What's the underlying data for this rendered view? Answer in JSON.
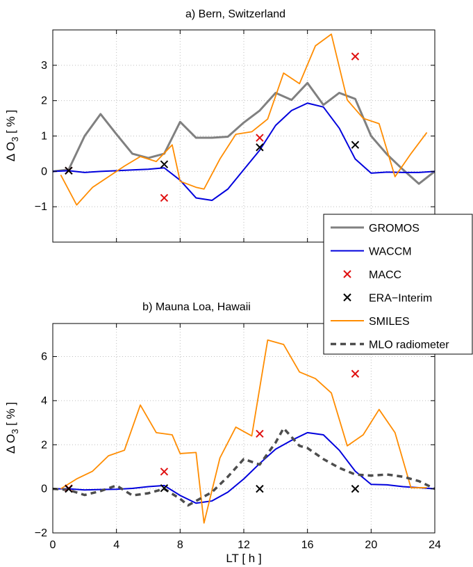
{
  "chart_data": [
    {
      "type": "line",
      "title": "a)  Bern, Switzerland",
      "xlabel": "",
      "ylabel": "Δ O3 [ % ]",
      "xlim": [
        0,
        24
      ],
      "ylim": [
        -2,
        4
      ],
      "xticks": [
        "0",
        "4",
        "8",
        "12",
        "16",
        "20",
        "24"
      ],
      "yticks": [
        "−1",
        "0",
        "1",
        "2",
        "3"
      ],
      "yticks_values": [
        -1,
        0,
        1,
        2,
        3
      ],
      "grid": true,
      "series": [
        {
          "name": "GROMOS",
          "color": "#808080",
          "width": 3,
          "dash": "",
          "x": [
            0,
            1,
            2,
            3,
            4,
            5,
            6,
            7,
            8,
            9,
            10,
            11,
            12,
            13,
            14,
            15,
            16,
            17,
            18,
            19,
            20,
            21,
            22,
            23,
            24
          ],
          "y": [
            0.0,
            0.05,
            1.0,
            1.62,
            1.05,
            0.5,
            0.38,
            0.5,
            1.4,
            0.95,
            0.95,
            0.98,
            1.38,
            1.72,
            2.22,
            2.02,
            2.5,
            1.88,
            2.22,
            2.05,
            1.0,
            0.48,
            0.05,
            -0.35,
            0.0
          ]
        },
        {
          "name": "WACCM",
          "color": "#0000dd",
          "width": 2,
          "dash": "",
          "x": [
            0,
            1,
            2,
            3,
            4,
            5,
            6,
            7,
            8,
            9,
            10,
            11,
            12,
            13,
            14,
            15,
            16,
            17,
            18,
            19,
            20,
            21,
            22,
            23,
            24
          ],
          "y": [
            0.0,
            0.02,
            -0.03,
            0.0,
            0.02,
            0.04,
            0.06,
            0.1,
            -0.25,
            -0.75,
            -0.82,
            -0.5,
            0.05,
            0.6,
            1.3,
            1.72,
            1.93,
            1.82,
            1.22,
            0.35,
            -0.05,
            -0.02,
            -0.03,
            -0.03,
            0.0
          ]
        },
        {
          "name": "MACC",
          "color": "#e01010",
          "marker": "x",
          "line": false,
          "x": [
            1,
            7,
            13,
            19
          ],
          "y": [
            0.02,
            -0.75,
            0.95,
            3.25
          ]
        },
        {
          "name": "ERA−Interim",
          "color": "#000000",
          "marker": "x",
          "line": false,
          "x": [
            1,
            7,
            13,
            19
          ],
          "y": [
            0.02,
            0.2,
            0.68,
            0.75
          ]
        },
        {
          "name": "SMILES",
          "color": "#ff8c00",
          "width": 1.8,
          "dash": "",
          "x": [
            0.5,
            1.5,
            2.5,
            3.5,
            4.5,
            5.5,
            6.5,
            7.5,
            8.0,
            9.0,
            9.5,
            10.5,
            11.5,
            12.5,
            13.5,
            14.5,
            15.5,
            16.5,
            17.5,
            18.5,
            19.5,
            20.5,
            21.5,
            22.5,
            23.5
          ],
          "y": [
            -0.1,
            -0.95,
            -0.45,
            -0.15,
            0.15,
            0.42,
            0.28,
            0.75,
            -0.28,
            -0.45,
            -0.5,
            0.35,
            1.05,
            1.12,
            1.48,
            2.78,
            2.48,
            3.55,
            3.88,
            2.02,
            1.5,
            1.35,
            -0.15,
            0.5,
            1.1
          ]
        }
      ]
    },
    {
      "type": "line",
      "title": "b)  Mauna Loa, Hawaii",
      "xlabel": "LT [ h ]",
      "ylabel": "Δ O3 [ % ]",
      "xlim": [
        0,
        24
      ],
      "ylim": [
        -2,
        7.5
      ],
      "xticks": [
        "0",
        "4",
        "8",
        "12",
        "16",
        "20",
        "24"
      ],
      "xticks_values": [
        0,
        4,
        8,
        12,
        16,
        20,
        24
      ],
      "yticks": [
        "−2",
        "0",
        "2",
        "4",
        "6"
      ],
      "yticks_values": [
        -2,
        0,
        2,
        4,
        6
      ],
      "grid": true,
      "series": [
        {
          "name": "WACCM",
          "color": "#0000dd",
          "width": 2,
          "dash": "",
          "x": [
            0,
            1,
            2,
            3,
            4,
            5,
            6,
            7,
            8,
            9,
            10,
            11,
            12,
            13,
            14,
            15,
            16,
            17,
            18,
            19,
            20,
            21,
            22,
            23,
            24
          ],
          "y": [
            0.0,
            0.0,
            -0.05,
            -0.03,
            -0.02,
            0.02,
            0.1,
            0.15,
            -0.3,
            -0.65,
            -0.55,
            -0.15,
            0.45,
            1.15,
            1.8,
            2.2,
            2.55,
            2.45,
            1.75,
            0.8,
            0.2,
            0.18,
            0.1,
            0.05,
            0.0
          ]
        },
        {
          "name": "MACC",
          "color": "#e01010",
          "marker": "x",
          "line": false,
          "x": [
            1,
            7,
            13,
            19
          ],
          "y": [
            0.02,
            0.78,
            2.5,
            5.22
          ]
        },
        {
          "name": "ERA−Interim",
          "color": "#000000",
          "marker": "x",
          "line": false,
          "x": [
            1,
            7,
            13,
            19
          ],
          "y": [
            0.0,
            0.03,
            0.0,
            0.0
          ]
        },
        {
          "name": "SMILES",
          "color": "#ff8c00",
          "width": 1.8,
          "dash": "",
          "x": [
            0.5,
            1.5,
            2.5,
            3.5,
            4.5,
            5.5,
            6.5,
            7.5,
            8.0,
            9.0,
            9.5,
            10.5,
            11.5,
            12.5,
            13.5,
            14.5,
            15.5,
            16.5,
            17.5,
            18.5,
            19.5,
            20.5,
            21.5,
            22.5,
            23.5
          ],
          "y": [
            0.0,
            0.45,
            0.8,
            1.5,
            1.75,
            3.8,
            2.55,
            2.45,
            1.6,
            1.65,
            -1.55,
            1.4,
            2.8,
            2.4,
            6.75,
            6.55,
            5.3,
            5.0,
            4.35,
            1.95,
            2.45,
            3.6,
            2.55,
            0.05,
            0.05
          ]
        },
        {
          "name": "MLO radiometer",
          "color": "#4d4d4d",
          "width": 3.5,
          "dash": "8,6",
          "x": [
            0,
            1,
            2,
            3,
            4,
            5,
            6,
            7,
            8,
            8.5,
            9,
            10,
            11,
            12,
            13,
            14,
            14.5,
            15,
            15.5,
            16,
            16.5,
            17,
            18,
            19,
            20,
            21,
            22,
            23,
            24
          ],
          "y": [
            0.0,
            -0.05,
            -0.28,
            -0.1,
            0.15,
            -0.3,
            -0.2,
            0.0,
            -0.45,
            -0.75,
            -0.55,
            -0.15,
            0.55,
            1.35,
            1.1,
            2.1,
            2.75,
            2.35,
            1.95,
            1.85,
            1.6,
            1.35,
            0.95,
            0.65,
            0.6,
            0.65,
            0.55,
            0.35,
            0.0
          ]
        }
      ]
    }
  ],
  "legend": {
    "entries": [
      {
        "name": "GROMOS",
        "color": "#808080",
        "style": "line",
        "width": 3,
        "dash": ""
      },
      {
        "name": "WACCM",
        "color": "#0000dd",
        "style": "line",
        "width": 2,
        "dash": ""
      },
      {
        "name": "MACC",
        "color": "#e01010",
        "style": "x"
      },
      {
        "name": "ERA−Interim",
        "color": "#000000",
        "style": "x"
      },
      {
        "name": "SMILES",
        "color": "#ff8c00",
        "style": "line",
        "width": 2,
        "dash": ""
      },
      {
        "name": "MLO radiometer",
        "color": "#4d4d4d",
        "style": "line",
        "width": 3.5,
        "dash": "8,6"
      }
    ]
  }
}
